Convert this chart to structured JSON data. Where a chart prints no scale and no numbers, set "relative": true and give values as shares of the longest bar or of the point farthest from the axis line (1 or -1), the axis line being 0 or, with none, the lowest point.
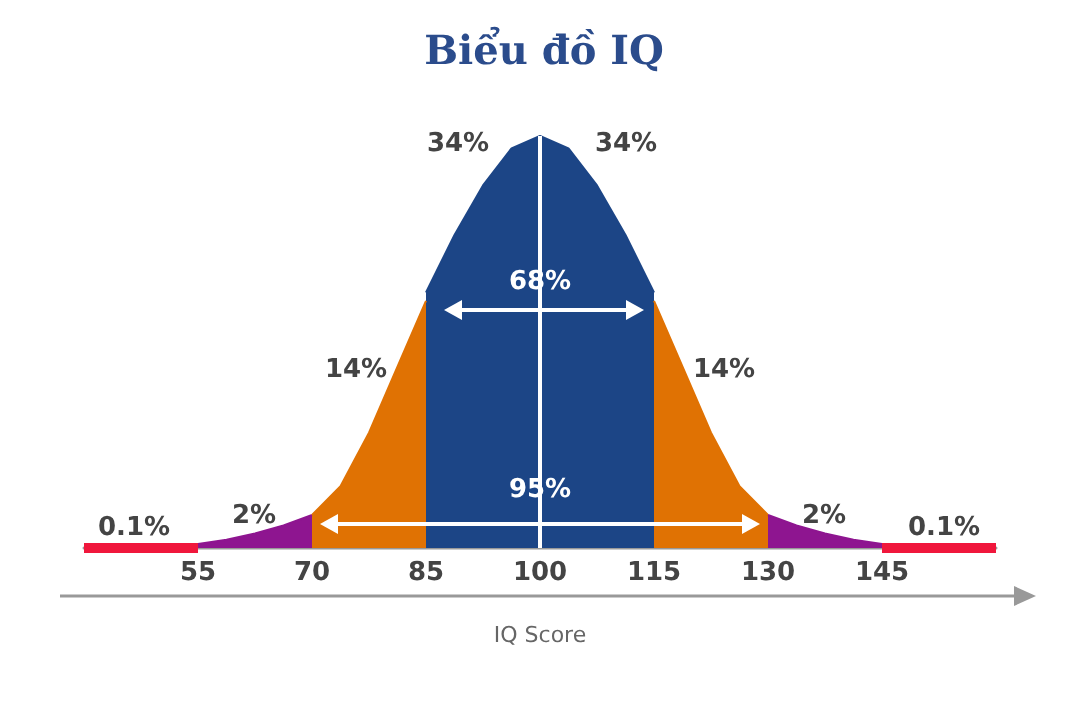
{
  "chart_data": {
    "type": "area",
    "title": "Biểu đồ IQ",
    "xlabel": "IQ Score",
    "relative": true,
    "xlim": [
      40,
      160
    ],
    "xticks": [
      55,
      70,
      85,
      100,
      115,
      130,
      145
    ],
    "series": [
      {
        "type": "line",
        "color": "#f0173c",
        "x": [
          40,
          55
        ],
        "values": [
          0,
          0
        ]
      },
      {
        "color": "#8e1590",
        "x": [
          55,
          58.75,
          62.5,
          66.25,
          70
        ],
        "values": [
          0.01,
          0.02,
          0.035,
          0.055,
          0.08
        ]
      },
      {
        "color": "#e07203",
        "x": [
          70,
          73.75,
          77.5,
          81.25,
          85
        ],
        "values": [
          0.08,
          0.15,
          0.28,
          0.44,
          0.6
        ]
      },
      {
        "color": "#1c4586",
        "x": [
          85,
          88.75,
          92.5,
          96.25,
          100,
          103.75,
          107.5,
          111.25,
          115
        ],
        "values": [
          0.62,
          0.76,
          0.88,
          0.97,
          1,
          0.97,
          0.88,
          0.76,
          0.62
        ]
      },
      {
        "color": "#e07203",
        "x": [
          115,
          118.75,
          122.5,
          126.25,
          130
        ],
        "values": [
          0.6,
          0.44,
          0.28,
          0.15,
          0.08
        ]
      },
      {
        "color": "#8e1590",
        "x": [
          130,
          133.75,
          137.5,
          141.25,
          145
        ],
        "values": [
          0.08,
          0.055,
          0.035,
          0.02,
          0.01
        ]
      },
      {
        "type": "line",
        "color": "#f0173c",
        "x": [
          145,
          160
        ],
        "values": [
          0,
          0
        ]
      }
    ],
    "ref_lines": [
      {
        "axis": "x",
        "value": 100,
        "color": "#ffffff"
      }
    ],
    "annotations": [
      "34%",
      "34%",
      "14%",
      "14%",
      "2%",
      "2%",
      "0.1%",
      "0.1%",
      "68%",
      "95%"
    ],
    "grid": false,
    "marker": "none"
  }
}
